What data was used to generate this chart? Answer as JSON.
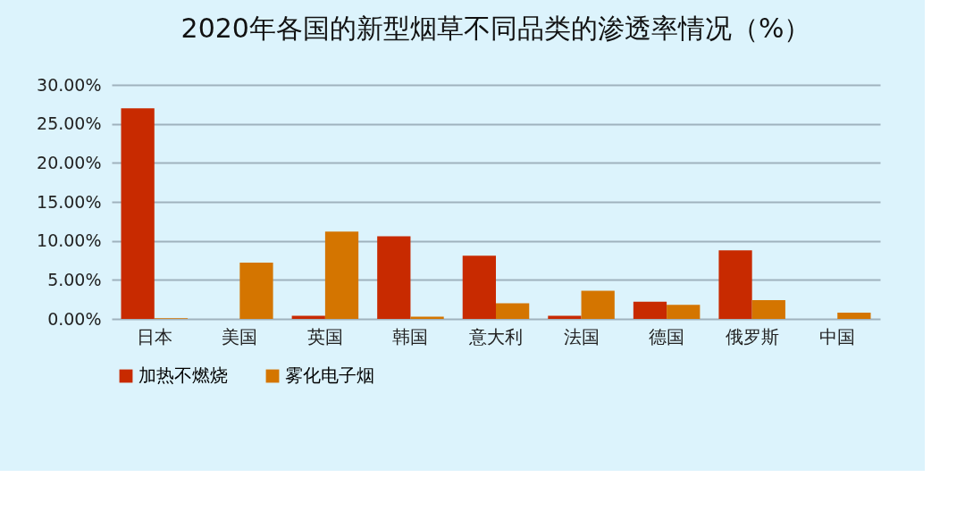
{
  "chart_data": {
    "type": "bar",
    "title": "2020年各国的新型烟草不同品类的渗透率情况（%）",
    "categories": [
      "日本",
      "美国",
      "英国",
      "韩国",
      "意大利",
      "法国",
      "德国",
      "俄罗斯",
      "中国"
    ],
    "series": [
      {
        "name": "加热不燃烧",
        "color": "#c82a00",
        "values": [
          27.0,
          null,
          0.4,
          10.6,
          8.1,
          0.4,
          2.2,
          8.8,
          null
        ]
      },
      {
        "name": "雾化电子烟",
        "color": "#d47500",
        "values": [
          0.1,
          7.2,
          11.2,
          0.3,
          2.0,
          3.6,
          1.8,
          2.4,
          0.8
        ]
      }
    ],
    "ylim": [
      0,
      30
    ],
    "yticks": [
      {
        "value": 0,
        "label": "0.00%"
      },
      {
        "value": 5,
        "label": "5.00%"
      },
      {
        "value": 10,
        "label": "10.00%"
      },
      {
        "value": 15,
        "label": "15.00%"
      },
      {
        "value": 20,
        "label": "20.00%"
      },
      {
        "value": 25,
        "label": "25.00%"
      },
      {
        "value": 30,
        "label": "30.00%"
      }
    ],
    "grid": "y",
    "legend": "bottom"
  }
}
